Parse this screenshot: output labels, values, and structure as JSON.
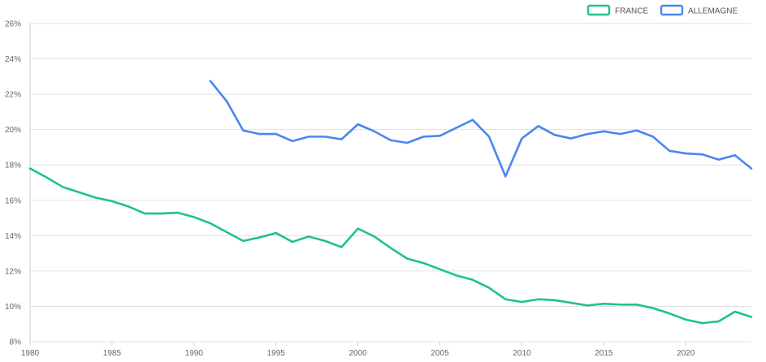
{
  "chart_data": {
    "type": "line",
    "title": "",
    "xlabel": "",
    "ylabel": "",
    "xlim": [
      1980,
      2024
    ],
    "ylim": [
      8,
      26
    ],
    "x_ticks": [
      1980,
      1985,
      1990,
      1995,
      2000,
      2005,
      2010,
      2015,
      2020
    ],
    "y_ticks": [
      8,
      10,
      12,
      14,
      16,
      18,
      20,
      22,
      24,
      26
    ],
    "y_tick_suffix": "%",
    "grid": true,
    "legend_position": "top-right",
    "series": [
      {
        "name": "FRANCE",
        "color": "#1fc28c",
        "points": [
          [
            1980,
            17.8
          ],
          [
            1981,
            17.3
          ],
          [
            1982,
            16.75
          ],
          [
            1983,
            16.45
          ],
          [
            1984,
            16.15
          ],
          [
            1985,
            15.95
          ],
          [
            1986,
            15.65
          ],
          [
            1987,
            15.25
          ],
          [
            1988,
            15.25
          ],
          [
            1989,
            15.3
          ],
          [
            1990,
            15.05
          ],
          [
            1991,
            14.7
          ],
          [
            1992,
            14.2
          ],
          [
            1993,
            13.7
          ],
          [
            1994,
            13.9
          ],
          [
            1995,
            14.15
          ],
          [
            1996,
            13.65
          ],
          [
            1997,
            13.95
          ],
          [
            1998,
            13.7
          ],
          [
            1999,
            13.35
          ],
          [
            2000,
            14.4
          ],
          [
            2001,
            13.95
          ],
          [
            2002,
            13.3
          ],
          [
            2003,
            12.7
          ],
          [
            2004,
            12.45
          ],
          [
            2005,
            12.1
          ],
          [
            2006,
            11.75
          ],
          [
            2007,
            11.5
          ],
          [
            2008,
            11.05
          ],
          [
            2009,
            10.4
          ],
          [
            2010,
            10.25
          ],
          [
            2011,
            10.4
          ],
          [
            2012,
            10.35
          ],
          [
            2013,
            10.2
          ],
          [
            2014,
            10.05
          ],
          [
            2015,
            10.15
          ],
          [
            2016,
            10.1
          ],
          [
            2017,
            10.1
          ],
          [
            2018,
            9.9
          ],
          [
            2019,
            9.6
          ],
          [
            2020,
            9.25
          ],
          [
            2021,
            9.05
          ],
          [
            2022,
            9.15
          ],
          [
            2023,
            9.7
          ],
          [
            2024,
            9.4
          ]
        ]
      },
      {
        "name": "ALLEMAGNE",
        "color": "#4a86ef",
        "points": [
          [
            1991,
            22.75
          ],
          [
            1992,
            21.6
          ],
          [
            1993,
            19.95
          ],
          [
            1994,
            19.75
          ],
          [
            1995,
            19.75
          ],
          [
            1996,
            19.35
          ],
          [
            1997,
            19.6
          ],
          [
            1998,
            19.6
          ],
          [
            1999,
            19.45
          ],
          [
            2000,
            20.3
          ],
          [
            2001,
            19.9
          ],
          [
            2002,
            19.4
          ],
          [
            2003,
            19.25
          ],
          [
            2004,
            19.6
          ],
          [
            2005,
            19.65
          ],
          [
            2006,
            20.1
          ],
          [
            2007,
            20.55
          ],
          [
            2008,
            19.6
          ],
          [
            2009,
            17.35
          ],
          [
            2010,
            19.5
          ],
          [
            2011,
            20.2
          ],
          [
            2012,
            19.7
          ],
          [
            2013,
            19.5
          ],
          [
            2014,
            19.75
          ],
          [
            2015,
            19.9
          ],
          [
            2016,
            19.75
          ],
          [
            2017,
            19.95
          ],
          [
            2018,
            19.6
          ],
          [
            2019,
            18.8
          ],
          [
            2020,
            18.65
          ],
          [
            2021,
            18.6
          ],
          [
            2022,
            18.3
          ],
          [
            2023,
            18.55
          ],
          [
            2024,
            17.8
          ]
        ]
      }
    ]
  }
}
